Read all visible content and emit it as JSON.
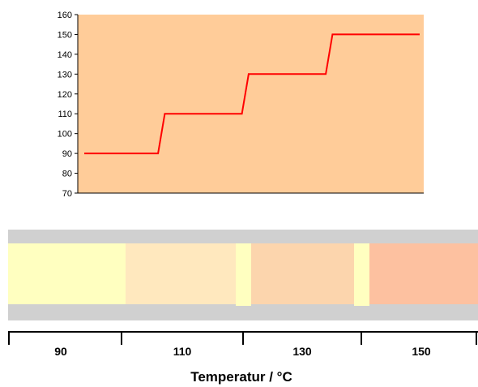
{
  "chart_data": {
    "type": "line",
    "title": "",
    "xlabel": "",
    "ylabel": "",
    "ylim": [
      70,
      160
    ],
    "yticks": [
      70,
      80,
      90,
      100,
      110,
      120,
      130,
      140,
      150,
      160
    ],
    "grid": false,
    "legend": "none",
    "colors": {
      "plot_background": "#ffcc99",
      "line": "#ff0000"
    },
    "series": [
      {
        "x": [
          0,
          0.22,
          0.24,
          0.47,
          0.49,
          0.72,
          0.74,
          1.0
        ],
        "values": [
          90,
          90,
          110,
          110,
          130,
          130,
          150,
          150
        ]
      }
    ]
  },
  "temperature_bar": {
    "title": "Temperatur / °C",
    "ticks": [
      "90",
      "110",
      "130",
      "150"
    ],
    "colors": {
      "frame": "#d0d0d0",
      "segment_90": "#ffffc0",
      "segment_110": "#ffe8be",
      "segment_130": "#fcd5ad",
      "segment_150": "#fdc1a0",
      "gap": "#ffffc0"
    }
  }
}
